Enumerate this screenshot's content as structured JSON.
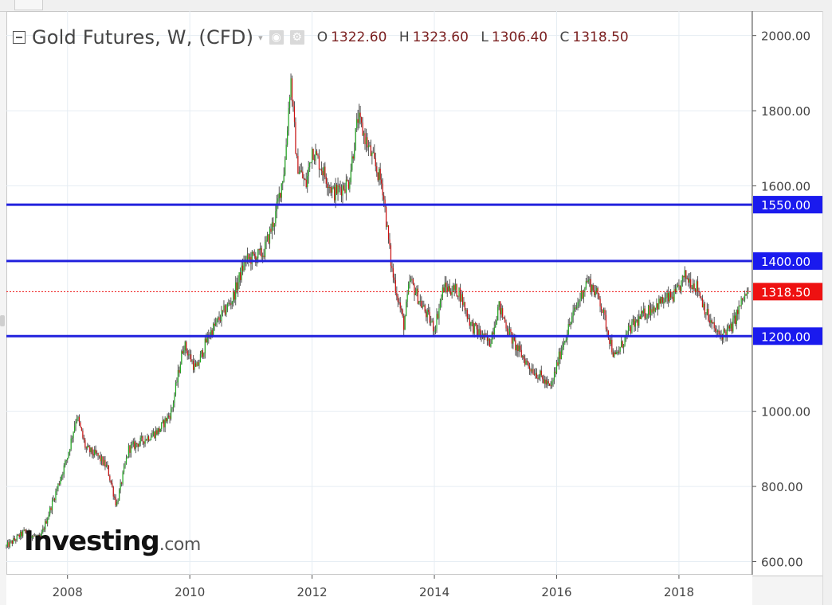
{
  "legend": {
    "title": "Gold Futures, W, (CFD)",
    "caret": "▾",
    "eye_icon": "eye-icon",
    "gear_icon": "gear-icon",
    "ohlc": {
      "o_label": "O",
      "o_value": "1322.60",
      "h_label": "H",
      "h_value": "1323.60",
      "l_label": "L",
      "l_value": "1306.40",
      "c_label": "C",
      "c_value": "1318.50"
    }
  },
  "logo": {
    "main": "Investing",
    "domain": ".com"
  },
  "colors": {
    "up": "#22aa22",
    "down": "#cc1111",
    "wick": "#555555",
    "level_line": "#2222dd",
    "level_badge": "#1a1aee",
    "last_badge": "#ee1111",
    "grid": "#e6edf3"
  },
  "chart_data": {
    "type": "candlestick",
    "title": "Gold Futures, W, (CFD)",
    "timeframe": "W",
    "x_tick_labels": [
      "2008",
      "2010",
      "2012",
      "2014",
      "2016",
      "2018"
    ],
    "y_tick_labels": [
      "2000.00",
      "1800.00",
      "1600.00",
      "1000.00",
      "800.00",
      "600.00"
    ],
    "ylim": [
      565,
      2065
    ],
    "xlim": [
      2007.0,
      2019.2
    ],
    "grid": true,
    "horizontal_levels": [
      {
        "value": 1550,
        "label": "1550.00"
      },
      {
        "value": 1400,
        "label": "1400.00"
      },
      {
        "value": 1200,
        "label": "1200.00"
      }
    ],
    "last_price": {
      "value": 1318.5,
      "label": "1318.50"
    },
    "price_path": {
      "x": [
        2007.0,
        2007.3,
        2007.55,
        2007.8,
        2008.0,
        2008.15,
        2008.3,
        2008.5,
        2008.65,
        2008.8,
        2009.0,
        2009.2,
        2009.5,
        2009.7,
        2009.9,
        2010.1,
        2010.3,
        2010.5,
        2010.7,
        2010.9,
        2011.2,
        2011.4,
        2011.55,
        2011.65,
        2011.75,
        2011.9,
        2012.0,
        2012.15,
        2012.35,
        2012.6,
        2012.75,
        2012.95,
        2013.15,
        2013.3,
        2013.5,
        2013.6,
        2013.8,
        2014.0,
        2014.15,
        2014.4,
        2014.6,
        2014.9,
        2015.05,
        2015.3,
        2015.55,
        2015.75,
        2015.9,
        2016.1,
        2016.3,
        2016.5,
        2016.7,
        2016.95,
        2017.2,
        2017.5,
        2017.7,
        2017.95,
        2018.1,
        2018.3,
        2018.5,
        2018.65,
        2018.85,
        2019.05,
        2019.15
      ],
      "y": [
        640,
        680,
        660,
        780,
        880,
        990,
        900,
        880,
        850,
        750,
        900,
        920,
        950,
        1000,
        1180,
        1110,
        1200,
        1250,
        1300,
        1400,
        1420,
        1520,
        1650,
        1890,
        1660,
        1600,
        1700,
        1650,
        1580,
        1610,
        1780,
        1690,
        1600,
        1380,
        1230,
        1350,
        1280,
        1220,
        1330,
        1320,
        1230,
        1180,
        1280,
        1180,
        1120,
        1090,
        1060,
        1180,
        1270,
        1350,
        1300,
        1140,
        1220,
        1270,
        1290,
        1310,
        1360,
        1330,
        1240,
        1200,
        1220,
        1300,
        1318.5
      ]
    }
  }
}
